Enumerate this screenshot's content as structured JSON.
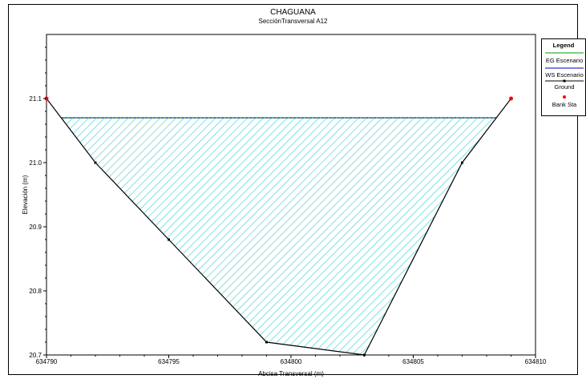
{
  "chart_data": {
    "type": "line",
    "title": "CHAGUANA",
    "subtitle": "SecciónTransversal A12",
    "xlabel": "Abcisa Transversal (m)",
    "ylabel": "Elevación (m)",
    "xlim": [
      634790,
      634810
    ],
    "ylim": [
      20.7,
      21.2
    ],
    "x_ticks": [
      "634790",
      "634795",
      "634800",
      "634805",
      "634810"
    ],
    "y_ticks": [
      "20.7",
      "20.8",
      "20.9",
      "21.0",
      "21.1"
    ],
    "ground": {
      "x": [
        634790,
        634792,
        634795,
        634799,
        634803,
        634807,
        634809
      ],
      "y": [
        21.1,
        21.0,
        20.88,
        20.72,
        20.7,
        21.0,
        21.1
      ]
    },
    "bank_stations": {
      "x": [
        634790,
        634809
      ],
      "y": [
        21.1,
        21.1
      ]
    },
    "water_surface": {
      "elevation": 21.07,
      "color": "#0000cc"
    },
    "energy_grade": {
      "elevation": 21.07,
      "color": "#00a000"
    },
    "fill_color": "#33cccc",
    "ground_color": "#000000",
    "bank_color": "#ff0000",
    "grid": false,
    "legend_position": "right",
    "legend": {
      "title": "Legend",
      "items": [
        "EG Escenario",
        "WS Escenario",
        "Ground",
        "Bank Sta"
      ]
    }
  }
}
